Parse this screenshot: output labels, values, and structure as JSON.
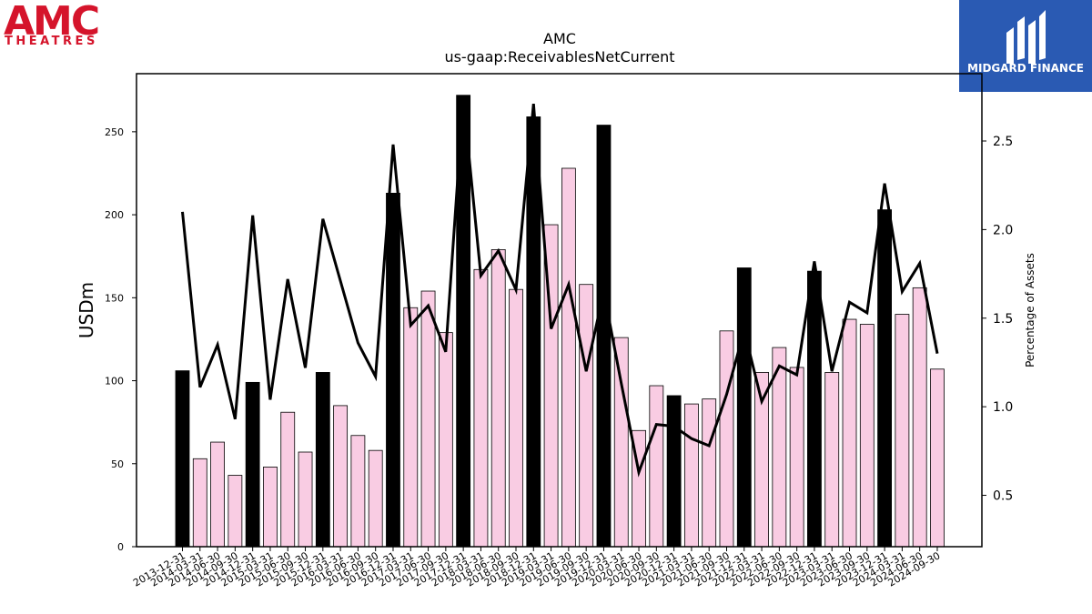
{
  "logos": {
    "left": {
      "word": "AMC",
      "sub": "THEATRES",
      "color": "#d5142b"
    },
    "right": {
      "text": "MIDGARD FINANCE",
      "bg": "#2a5ab3"
    }
  },
  "chart_data": {
    "type": "bar",
    "title": "AMC",
    "subtitle": "us-gaap:ReceivablesNetCurrent",
    "ylabel": "USDm",
    "y2label": "Percentage of Assets",
    "ylim": [
      0,
      285
    ],
    "y2lim": [
      0.21,
      2.88
    ],
    "yticks": [
      "0",
      "50",
      "100",
      "150",
      "200",
      "250"
    ],
    "y2ticks": [
      "0.5",
      "1.0",
      "1.5",
      "2.0",
      "2.5"
    ],
    "colors": {
      "q4_bar": "#000000",
      "other_bar": "#f9cce3",
      "line": "#000000"
    },
    "categories": [
      "2013-12-31",
      "2014-03-31",
      "2014-06-30",
      "2014-09-30",
      "2014-12-31",
      "2015-03-31",
      "2015-06-30",
      "2015-09-30",
      "2015-12-31",
      "2016-03-31",
      "2016-06-30",
      "2016-09-30",
      "2016-12-31",
      "2017-03-31",
      "2017-06-30",
      "2017-09-30",
      "2017-12-31",
      "2018-03-31",
      "2018-06-30",
      "2018-09-30",
      "2018-12-31",
      "2019-03-31",
      "2019-06-30",
      "2019-09-30",
      "2019-12-31",
      "2020-03-31",
      "2020-06-30",
      "2020-09-30",
      "2020-12-31",
      "2021-03-31",
      "2021-06-30",
      "2021-09-30",
      "2021-12-31",
      "2022-03-31",
      "2022-06-30",
      "2022-09-30",
      "2022-12-31",
      "2023-03-31",
      "2023-06-30",
      "2023-09-30",
      "2023-12-31",
      "2024-03-31",
      "2024-06-30",
      "2024-09-30"
    ],
    "values": [
      106,
      53,
      63,
      43,
      99,
      48,
      81,
      57,
      105,
      85,
      67,
      58,
      213,
      144,
      154,
      129,
      272,
      167,
      179,
      155,
      259,
      194,
      228,
      158,
      254,
      126,
      70,
      97,
      91,
      86,
      89,
      130,
      168,
      105,
      120,
      108,
      166,
      105,
      137,
      134,
      203,
      140,
      156,
      107
    ],
    "pct_assets": [
      2.1,
      1.11,
      1.35,
      0.93,
      2.08,
      1.04,
      1.72,
      1.22,
      2.06,
      1.71,
      1.36,
      1.17,
      2.48,
      1.46,
      1.57,
      1.31,
      2.74,
      1.74,
      1.88,
      1.66,
      2.71,
      1.44,
      1.69,
      1.2,
      1.65,
      1.13,
      0.63,
      0.9,
      0.89,
      0.82,
      0.78,
      1.07,
      1.43,
      1.03,
      1.23,
      1.18,
      1.82,
      1.2,
      1.59,
      1.53,
      2.26,
      1.65,
      1.81,
      1.3
    ]
  }
}
